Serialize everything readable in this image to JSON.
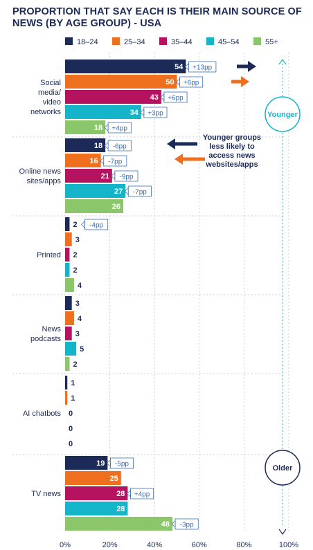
{
  "chart_data": {
    "type": "bar",
    "orientation": "horizontal",
    "title": "PROPORTION THAT SAY EACH IS THEIR MAIN SOURCE OF NEWS (BY AGE GROUP) - USA",
    "categories": [
      "Social media/ video networks",
      "Online news sites/apps",
      "Printed",
      "News podcasts",
      "AI chatbots",
      "TV news"
    ],
    "category_lines": [
      [
        "Social",
        "media/",
        "video",
        "networks"
      ],
      [
        "Online news",
        "sites/apps"
      ],
      [
        "Printed"
      ],
      [
        "News",
        "podcasts"
      ],
      [
        "AI chatbots"
      ],
      [
        "TV news"
      ]
    ],
    "series": [
      {
        "name": "18–24",
        "color": "#1b2a57",
        "values": [
          54,
          18,
          2,
          3,
          1,
          19
        ],
        "changes": [
          "+13pp",
          "-6pp",
          "-4pp",
          null,
          null,
          "-5pp"
        ]
      },
      {
        "name": "25–34",
        "color": "#ee6f1e",
        "values": [
          50,
          16,
          3,
          4,
          1,
          25
        ],
        "changes": [
          "+6pp",
          "-7pp",
          null,
          null,
          null,
          null
        ]
      },
      {
        "name": "35–44",
        "color": "#b5125f",
        "values": [
          43,
          21,
          2,
          3,
          0,
          28
        ],
        "changes": [
          "+6pp",
          "-9pp",
          null,
          null,
          null,
          "+4pp"
        ]
      },
      {
        "name": "45–54",
        "color": "#14b5c9",
        "values": [
          34,
          27,
          2,
          5,
          0,
          28
        ],
        "changes": [
          "+3pp",
          "-7pp",
          null,
          null,
          null,
          null
        ]
      },
      {
        "name": "55+",
        "color": "#8cc66a",
        "values": [
          18,
          26,
          4,
          2,
          0,
          48
        ],
        "changes": [
          "+4pp",
          null,
          null,
          null,
          null,
          "-3pp"
        ]
      }
    ],
    "x_ticks": [
      "0%",
      "20%",
      "40%",
      "60%",
      "80%",
      "100%"
    ],
    "xlim": [
      0,
      100
    ],
    "legend_position": "top",
    "annotations": {
      "younger_label": "Younger",
      "older_label": "Older",
      "note_lines": [
        "Younger groups",
        "less likely to",
        "access news",
        "websites/apps"
      ]
    },
    "change_box_color": "#3a6fb0",
    "grid_color": "#c9cdd6"
  }
}
